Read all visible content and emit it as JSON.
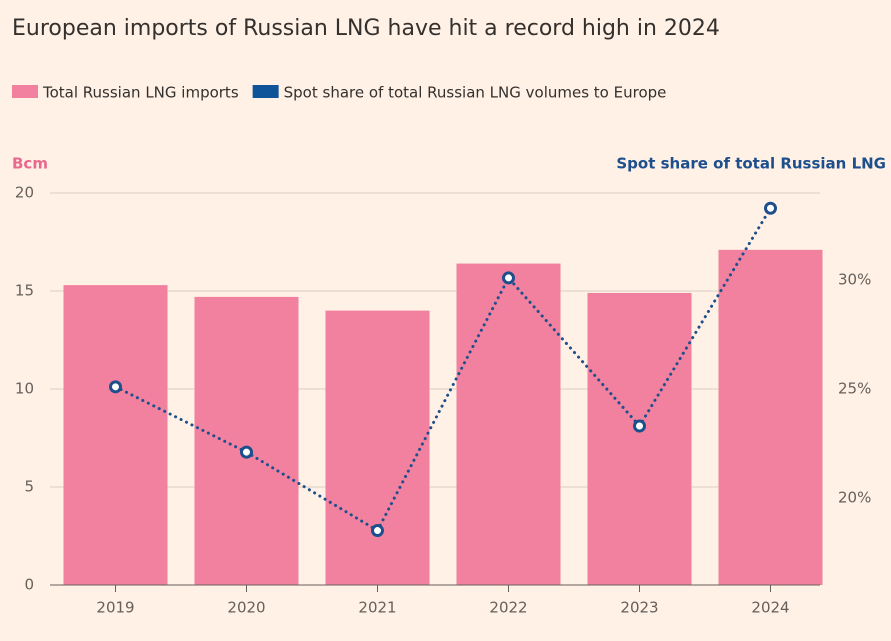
{
  "chart_data": {
    "type": "bar",
    "title": "European imports of Russian LNG have hit a record high in 2024",
    "y_label": "Bcm",
    "y2_label": "Spot share of total Russian LNG",
    "categories": [
      "2019",
      "2020",
      "2021",
      "2022",
      "2023",
      "2024"
    ],
    "series": [
      {
        "name": "Total Russian LNG imports",
        "color": "#f2809f",
        "type": "bar",
        "values": [
          15.3,
          14.7,
          14.0,
          16.4,
          14.9,
          17.1
        ]
      },
      {
        "name": "Spot share of total Russian LNG volumes to Europe",
        "color": "#0f5499",
        "line_color": "#1c4f8c",
        "type": "line",
        "axis": "y2",
        "values": [
          25.1,
          22.1,
          18.5,
          30.1,
          23.3,
          33.3
        ]
      }
    ],
    "ylim": [
      0,
      20
    ],
    "yticks": [
      0,
      5,
      10,
      15,
      20
    ],
    "y2lim": [
      16,
      34
    ],
    "y2ticks": [
      {
        "value": 20,
        "label": "20%"
      },
      {
        "value": 25,
        "label": "25%"
      },
      {
        "value": 30,
        "label": "30%"
      }
    ],
    "grid": true
  }
}
